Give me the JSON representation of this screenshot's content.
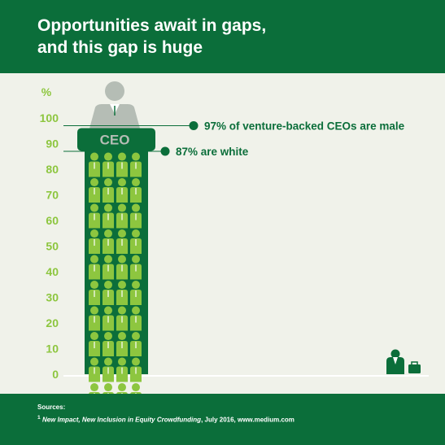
{
  "header": {
    "title": "Opportunities await in gaps,\nand this gap is huge"
  },
  "chart_data": {
    "type": "bar",
    "y_unit_label": "%",
    "ylim": [
      0,
      100
    ],
    "yticks": [
      "0",
      "10",
      "20",
      "30",
      "40",
      "50",
      "60",
      "70",
      "80",
      "90",
      "100"
    ],
    "bar_label": "CEO",
    "values": [
      97,
      87
    ],
    "annotations": [
      {
        "value": 97,
        "text": "97% of venture-backed CEOs are male"
      },
      {
        "value": 87,
        "text": "87% are white"
      }
    ],
    "grid": false
  },
  "colors": {
    "header_bg": "#0b6e3a",
    "bar": "#0b6e3a",
    "figure": "#8dc63f",
    "ceo_figure": "#b5bdb5",
    "axis_text": "#8dc63f",
    "annotation_text": "#0b6e3a",
    "background": "#f0f2ea"
  },
  "icons": {
    "ceo_person": "person-suit-icon",
    "crowd": "person-figure-icon",
    "outsider": "sad-person-with-briefcase-icon"
  },
  "footer": {
    "sources_label": "Sources:",
    "footnote_mark": "1",
    "source_title": "New Impact, New Inclusion in Equity Crowdfunding",
    "source_rest": ", July 2016, www.medium.com"
  }
}
